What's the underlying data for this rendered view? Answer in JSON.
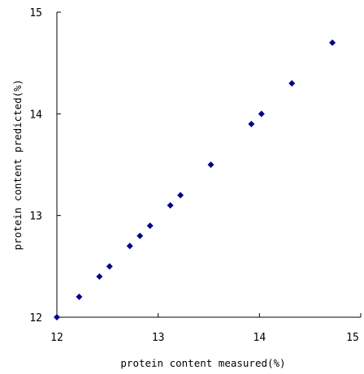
{
  "chart_data": {
    "type": "scatter",
    "title": "",
    "xlabel": "protein content measured(%)",
    "ylabel": "protein content predicted(%)",
    "xlim": [
      12,
      15
    ],
    "ylim": [
      12,
      15
    ],
    "x_ticks": [
      "12",
      "13",
      "14",
      "15"
    ],
    "y_ticks": [
      "12",
      "13",
      "14",
      "15"
    ],
    "grid": false,
    "marker": "diamond",
    "marker_color": "#00008B",
    "points": [
      {
        "x": 12.0,
        "y": 12.0
      },
      {
        "x": 12.22,
        "y": 12.2
      },
      {
        "x": 12.42,
        "y": 12.4
      },
      {
        "x": 12.52,
        "y": 12.5
      },
      {
        "x": 12.72,
        "y": 12.7
      },
      {
        "x": 12.82,
        "y": 12.8
      },
      {
        "x": 12.92,
        "y": 12.9
      },
      {
        "x": 13.12,
        "y": 13.1
      },
      {
        "x": 13.22,
        "y": 13.2
      },
      {
        "x": 13.52,
        "y": 13.5
      },
      {
        "x": 13.92,
        "y": 13.9
      },
      {
        "x": 14.02,
        "y": 14.0
      },
      {
        "x": 14.32,
        "y": 14.3
      },
      {
        "x": 14.72,
        "y": 14.7
      }
    ]
  }
}
